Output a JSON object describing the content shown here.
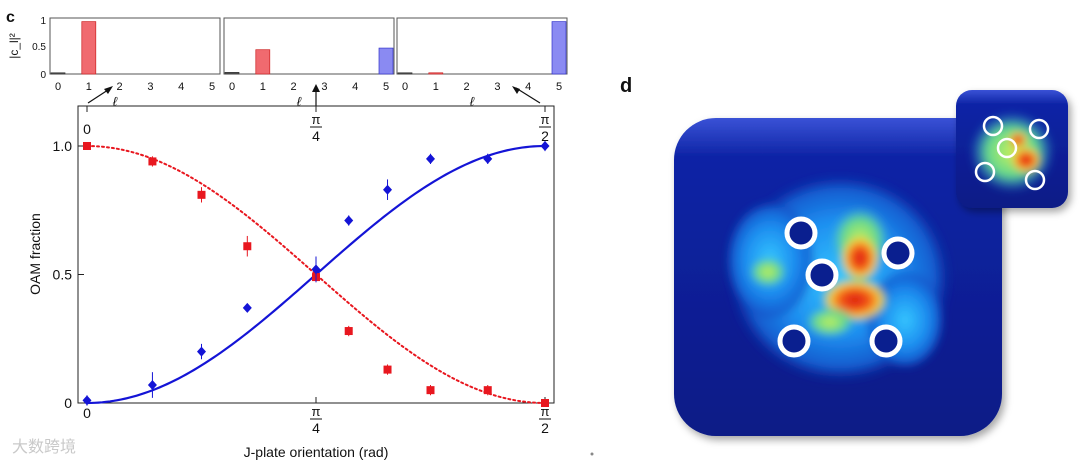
{
  "panel_c_label": "c",
  "panel_d_label": "d",
  "watermark_text": "大数跨境",
  "colors": {
    "red": "#e8171f",
    "blue": "#1414d6",
    "bar_red": "#f06a6f",
    "bar_blue": "#8a8af2",
    "bar_dark": "#555555",
    "heat_bg": "#0a1f8f"
  },
  "chart_data": [
    {
      "type": "bar",
      "ylabel": "|c_l|²",
      "xlabel": "ℓ",
      "categories": [
        "0",
        "1",
        "2",
        "3",
        "4",
        "5"
      ],
      "values": [
        0.01,
        0.97,
        0,
        0,
        0,
        0
      ],
      "bar_colors": [
        "dark",
        "red",
        "none",
        "none",
        "none",
        "none"
      ],
      "ylim": [
        0,
        1
      ],
      "yticks": [
        "0",
        "0.5",
        "1"
      ]
    },
    {
      "type": "bar",
      "ylabel": "",
      "xlabel": "ℓ",
      "categories": [
        "0",
        "1",
        "2",
        "3",
        "4",
        "5"
      ],
      "values": [
        0.03,
        0.45,
        0,
        0,
        0,
        0.48
      ],
      "bar_colors": [
        "dark",
        "red",
        "none",
        "none",
        "none",
        "blue"
      ],
      "ylim": [
        0,
        1
      ],
      "yticks": []
    },
    {
      "type": "bar",
      "ylabel": "",
      "xlabel": "ℓ",
      "categories": [
        "0",
        "1",
        "2",
        "3",
        "4",
        "5"
      ],
      "values": [
        0.01,
        0.01,
        0,
        0,
        0,
        0.97
      ],
      "bar_colors": [
        "dark",
        "red",
        "none",
        "none",
        "none",
        "blue"
      ],
      "ylim": [
        0,
        1
      ],
      "yticks": []
    },
    {
      "type": "scatter",
      "xlabel": "J-plate orientation (rad)",
      "ylabel": "OAM fraction",
      "xlim": [
        0,
        1.5708
      ],
      "ylim": [
        0,
        1.0
      ],
      "yticks": [
        "0",
        "0.5",
        "1.0"
      ],
      "xticks_bottom": [
        {
          "value": 0,
          "num": "0",
          "den": ""
        },
        {
          "value": 0.7854,
          "num": "π",
          "den": "4"
        },
        {
          "value": 1.5708,
          "num": "π",
          "den": "2"
        }
      ],
      "xticks_top": [
        {
          "value": 0,
          "num": "0",
          "den": ""
        },
        {
          "value": 0.7854,
          "num": "π",
          "den": "4"
        },
        {
          "value": 1.5708,
          "num": "π",
          "den": "2"
        }
      ],
      "series": [
        {
          "color": "red",
          "marker": "square",
          "fit": "cos2_dotted",
          "x": [
            0,
            0.2244,
            0.3927,
            0.5498,
            0.7854,
            0.8976,
            1.0307,
            1.1781,
            1.3744,
            1.5708
          ],
          "y": [
            1.0,
            0.94,
            0.81,
            0.61,
            0.49,
            0.28,
            0.13,
            0.05,
            0.05,
            0.0
          ],
          "err": [
            0.01,
            0.02,
            0.03,
            0.04,
            0.02,
            0.02,
            0.02,
            0.02,
            0.02,
            0.01
          ]
        },
        {
          "color": "blue",
          "marker": "diamond",
          "fit": "sin2_solid",
          "x": [
            0,
            0.2244,
            0.3927,
            0.5498,
            0.7854,
            0.8976,
            1.0307,
            1.1781,
            1.3744,
            1.5708
          ],
          "y": [
            0.01,
            0.07,
            0.2,
            0.37,
            0.52,
            0.71,
            0.83,
            0.95,
            0.95,
            1.0
          ],
          "err": [
            0.02,
            0.05,
            0.03,
            0.01,
            0.05,
            0.02,
            0.04,
            0.02,
            0.02,
            0.02
          ]
        }
      ]
    }
  ]
}
